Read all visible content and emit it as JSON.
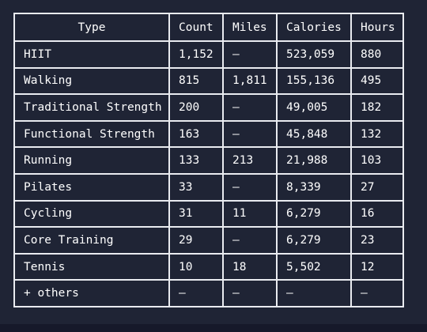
{
  "table": {
    "headers": [
      "Type",
      "Count",
      "Miles",
      "Calories",
      "Hours"
    ],
    "rows": [
      [
        "HIIT",
        "1,152",
        "—",
        "523,059",
        "880"
      ],
      [
        "Walking",
        "815",
        "1,811",
        "155,136",
        "495"
      ],
      [
        "Traditional Strength",
        "200",
        "—",
        "49,005",
        "182"
      ],
      [
        "Functional Strength",
        "163",
        "—",
        "45,848",
        "132"
      ],
      [
        "Running",
        "133",
        "213",
        "21,988",
        "103"
      ],
      [
        "Pilates",
        "33",
        "—",
        "8,339",
        "27"
      ],
      [
        "Cycling",
        "31",
        "11",
        "6,279",
        "16"
      ],
      [
        "Core Training",
        "29",
        "—",
        "6,279",
        "23"
      ],
      [
        "Tennis",
        "10",
        "18",
        "5,502",
        "12"
      ],
      [
        "+ others",
        "—",
        "—",
        "—",
        "—"
      ]
    ]
  },
  "colors": {
    "background": "#1f2435",
    "border": "#e9ebf0",
    "text": "#ffffff"
  }
}
